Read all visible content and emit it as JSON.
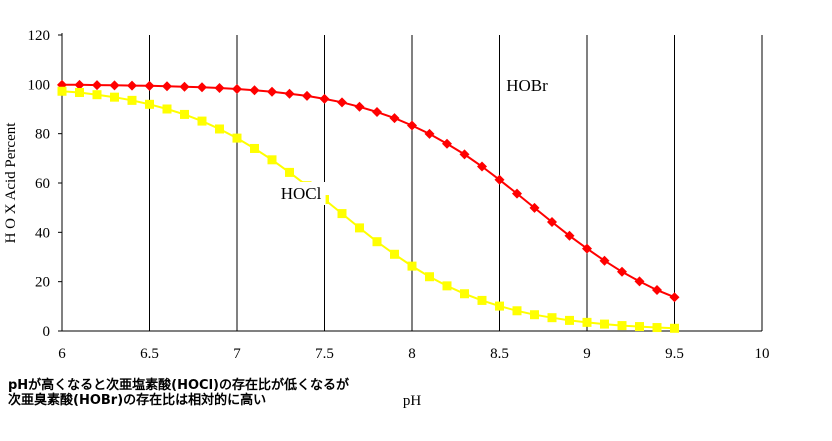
{
  "chart_data": {
    "type": "line",
    "xlabel": "pH",
    "ylabel": "H O X  Acid Percent",
    "xlim": [
      6,
      10
    ],
    "ylim": [
      0,
      120
    ],
    "x_ticks": [
      "6",
      "6.5",
      "7",
      "7.5",
      "8",
      "8.5",
      "9",
      "9.5",
      "10"
    ],
    "y_ticks": [
      "0",
      "20",
      "40",
      "60",
      "80",
      "100",
      "120"
    ],
    "grid": "vertical",
    "x": [
      6.0,
      6.1,
      6.2,
      6.3,
      6.4,
      6.5,
      6.6,
      6.7,
      6.8,
      6.9,
      7.0,
      7.1,
      7.2,
      7.3,
      7.4,
      7.5,
      7.6,
      7.7,
      7.8,
      7.9,
      8.0,
      8.1,
      8.2,
      8.3,
      8.4,
      8.5,
      8.6,
      8.7,
      8.8,
      8.9,
      9.0,
      9.1,
      9.2,
      9.3,
      9.4,
      9.5
    ],
    "series": [
      {
        "name": "HOBr",
        "color": "#ff0000",
        "marker": "diamond",
        "values": [
          99.8,
          99.8,
          99.7,
          99.6,
          99.5,
          99.4,
          99.2,
          99.0,
          98.8,
          98.5,
          98.1,
          97.6,
          97.0,
          96.2,
          95.3,
          94.1,
          92.7,
          90.9,
          88.8,
          86.3,
          83.3,
          79.9,
          75.9,
          71.6,
          66.7,
          61.3,
          55.7,
          49.9,
          44.2,
          38.6,
          33.4,
          28.5,
          24.0,
          20.1,
          16.6,
          13.7
        ]
      },
      {
        "name": "HOCl",
        "color": "#ffff00",
        "marker": "square",
        "values": [
          97.2,
          96.7,
          95.8,
          94.8,
          93.5,
          91.9,
          90.0,
          87.8,
          85.1,
          81.9,
          78.2,
          74.0,
          69.4,
          64.3,
          58.9,
          53.3,
          47.6,
          41.8,
          36.2,
          31.1,
          26.3,
          22.0,
          18.3,
          15.1,
          12.4,
          10.1,
          8.2,
          6.6,
          5.4,
          4.3,
          3.5,
          2.8,
          2.2,
          1.8,
          1.4,
          1.1
        ]
      }
    ],
    "annotations": [
      "HOBr",
      "HOCl"
    ],
    "caption": [
      "pHが高くなると次亜塩素酸(HOCl)の存在比が低くなるが",
      "次亜臭素酸(HOBr)の存在比は相対的に高い"
    ]
  }
}
